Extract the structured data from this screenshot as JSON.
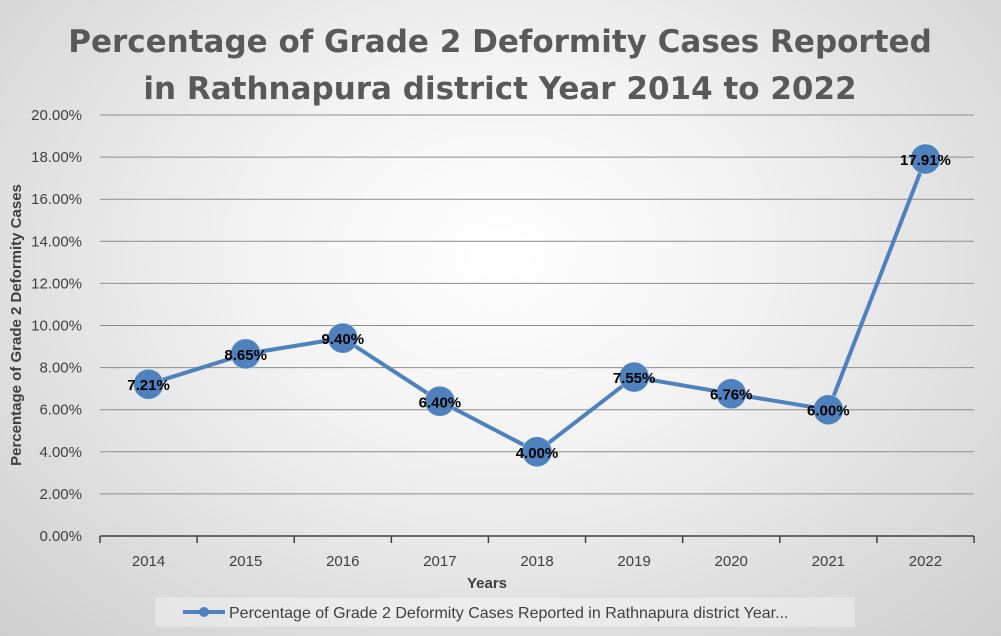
{
  "chart_data": {
    "type": "line",
    "title": "Percentage of Grade 2 Deformity Cases Reported in Rathnapura district Year 2014 to 2022",
    "title_lines": [
      "Percentage of Grade 2 Deformity Cases Reported",
      "in Rathnapura district Year 2014 to 2022"
    ],
    "xlabel": "Years",
    "ylabel": "Percentage of Grade 2 Deformity Cases",
    "categories": [
      "2014",
      "2015",
      "2016",
      "2017",
      "2018",
      "2019",
      "2020",
      "2021",
      "2022"
    ],
    "ylim": [
      0,
      20
    ],
    "yticks": [
      0,
      2,
      4,
      6,
      8,
      10,
      12,
      14,
      16,
      18,
      20
    ],
    "ytick_labels": [
      "0.00%",
      "2.00%",
      "4.00%",
      "6.00%",
      "8.00%",
      "10.00%",
      "12.00%",
      "14.00%",
      "16.00%",
      "18.00%",
      "20.00%"
    ],
    "grid": true,
    "legend_position": "bottom",
    "series": [
      {
        "name": "Percentage of Grade 2 Deformity Cases Reported in Rathnapura district Year...",
        "values": [
          7.21,
          8.65,
          9.4,
          6.4,
          4.0,
          7.55,
          6.76,
          6.0,
          17.91
        ],
        "labels": [
          "7.21%",
          "8.65%",
          "9.40%",
          "6.40%",
          "4.00%",
          "7.55%",
          "6.76%",
          "6.00%",
          "17.91%"
        ],
        "color": "#4f81bd"
      }
    ]
  }
}
